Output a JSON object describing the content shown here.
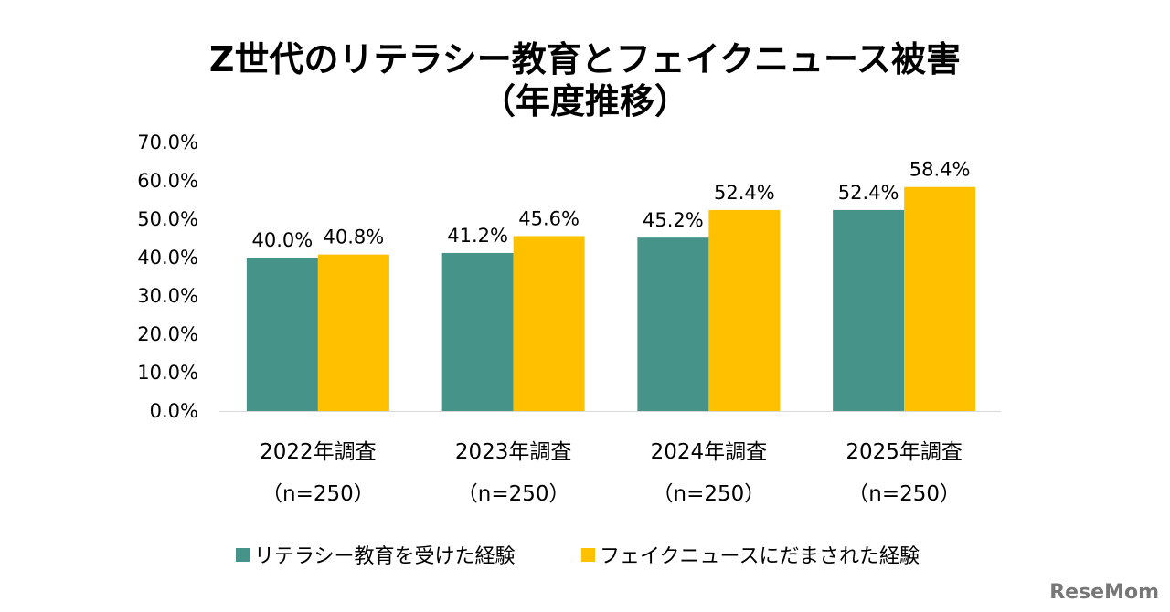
{
  "chart_data": {
    "type": "bar",
    "title": "Z世代のリテラシー教育とフェイクニュース被害",
    "subtitle": "（年度推移）",
    "categories": [
      {
        "line1": "2022年調査",
        "line2": "（n=250）"
      },
      {
        "line1": "2023年調査",
        "line2": "（n=250）"
      },
      {
        "line1": "2024年調査",
        "line2": "（n=250）"
      },
      {
        "line1": "2025年調査",
        "line2": "（n=250）"
      }
    ],
    "series": [
      {
        "name": "リテラシー教育を受けた経験",
        "color": "#46938A",
        "values": [
          40.0,
          41.2,
          45.2,
          52.4
        ]
      },
      {
        "name": "フェイクニュースにだまされた経験",
        "color": "#FFC000",
        "values": [
          40.8,
          45.6,
          52.4,
          58.4
        ]
      }
    ],
    "ylim": [
      0,
      70
    ],
    "yticks": [
      "0.0%",
      "10.0%",
      "20.0%",
      "30.0%",
      "40.0%",
      "50.0%",
      "60.0%",
      "70.0%"
    ],
    "value_format": "percent-1dp",
    "grid": false,
    "legend_position": "bottom",
    "xlabel": "",
    "ylabel": ""
  },
  "watermark": "ReseMom"
}
